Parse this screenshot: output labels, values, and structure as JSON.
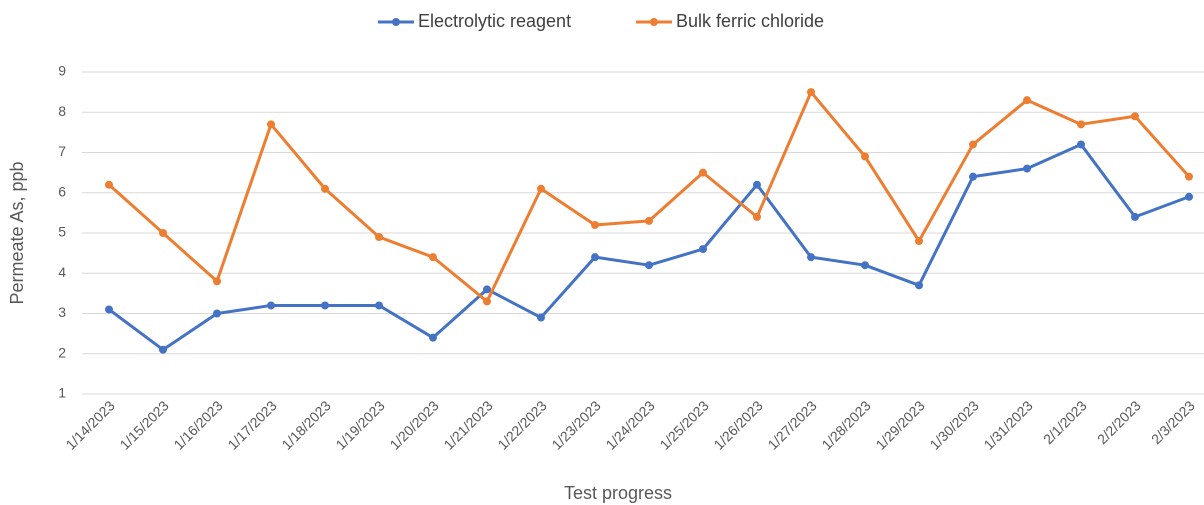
{
  "chart_data": {
    "type": "line",
    "x_label": "Test progress",
    "y_label": "Permeate As, ppb",
    "categories": [
      "1/14/2023",
      "1/15/2023",
      "1/16/2023",
      "1/17/2023",
      "1/18/2023",
      "1/19/2023",
      "1/20/2023",
      "1/21/2023",
      "1/22/2023",
      "1/23/2023",
      "1/24/2023",
      "1/25/2023",
      "1/26/2023",
      "1/27/2023",
      "1/28/2023",
      "1/29/2023",
      "1/30/2023",
      "1/31/2023",
      "2/1/2023",
      "2/2/2023",
      "2/3/2023"
    ],
    "series": [
      {
        "name": "Electrolytic reagent",
        "color": "#4472c4",
        "values": [
          3.1,
          2.1,
          3.0,
          3.2,
          3.2,
          3.2,
          2.4,
          3.6,
          2.9,
          4.4,
          4.2,
          4.6,
          6.2,
          4.4,
          4.2,
          3.7,
          6.4,
          6.6,
          7.2,
          5.4,
          5.9
        ]
      },
      {
        "name": "Bulk ferric chloride",
        "color": "#ed7d31",
        "values": [
          6.2,
          5.0,
          3.8,
          7.7,
          6.1,
          4.9,
          4.4,
          3.3,
          6.1,
          5.2,
          5.3,
          6.5,
          5.4,
          8.5,
          6.9,
          4.8,
          7.2,
          8.3,
          7.7,
          7.9,
          6.4
        ]
      }
    ],
    "ylim": [
      1,
      9
    ],
    "yticks": [
      1,
      2,
      3,
      4,
      5,
      6,
      7,
      8,
      9
    ],
    "grid": true,
    "legend": "top"
  }
}
